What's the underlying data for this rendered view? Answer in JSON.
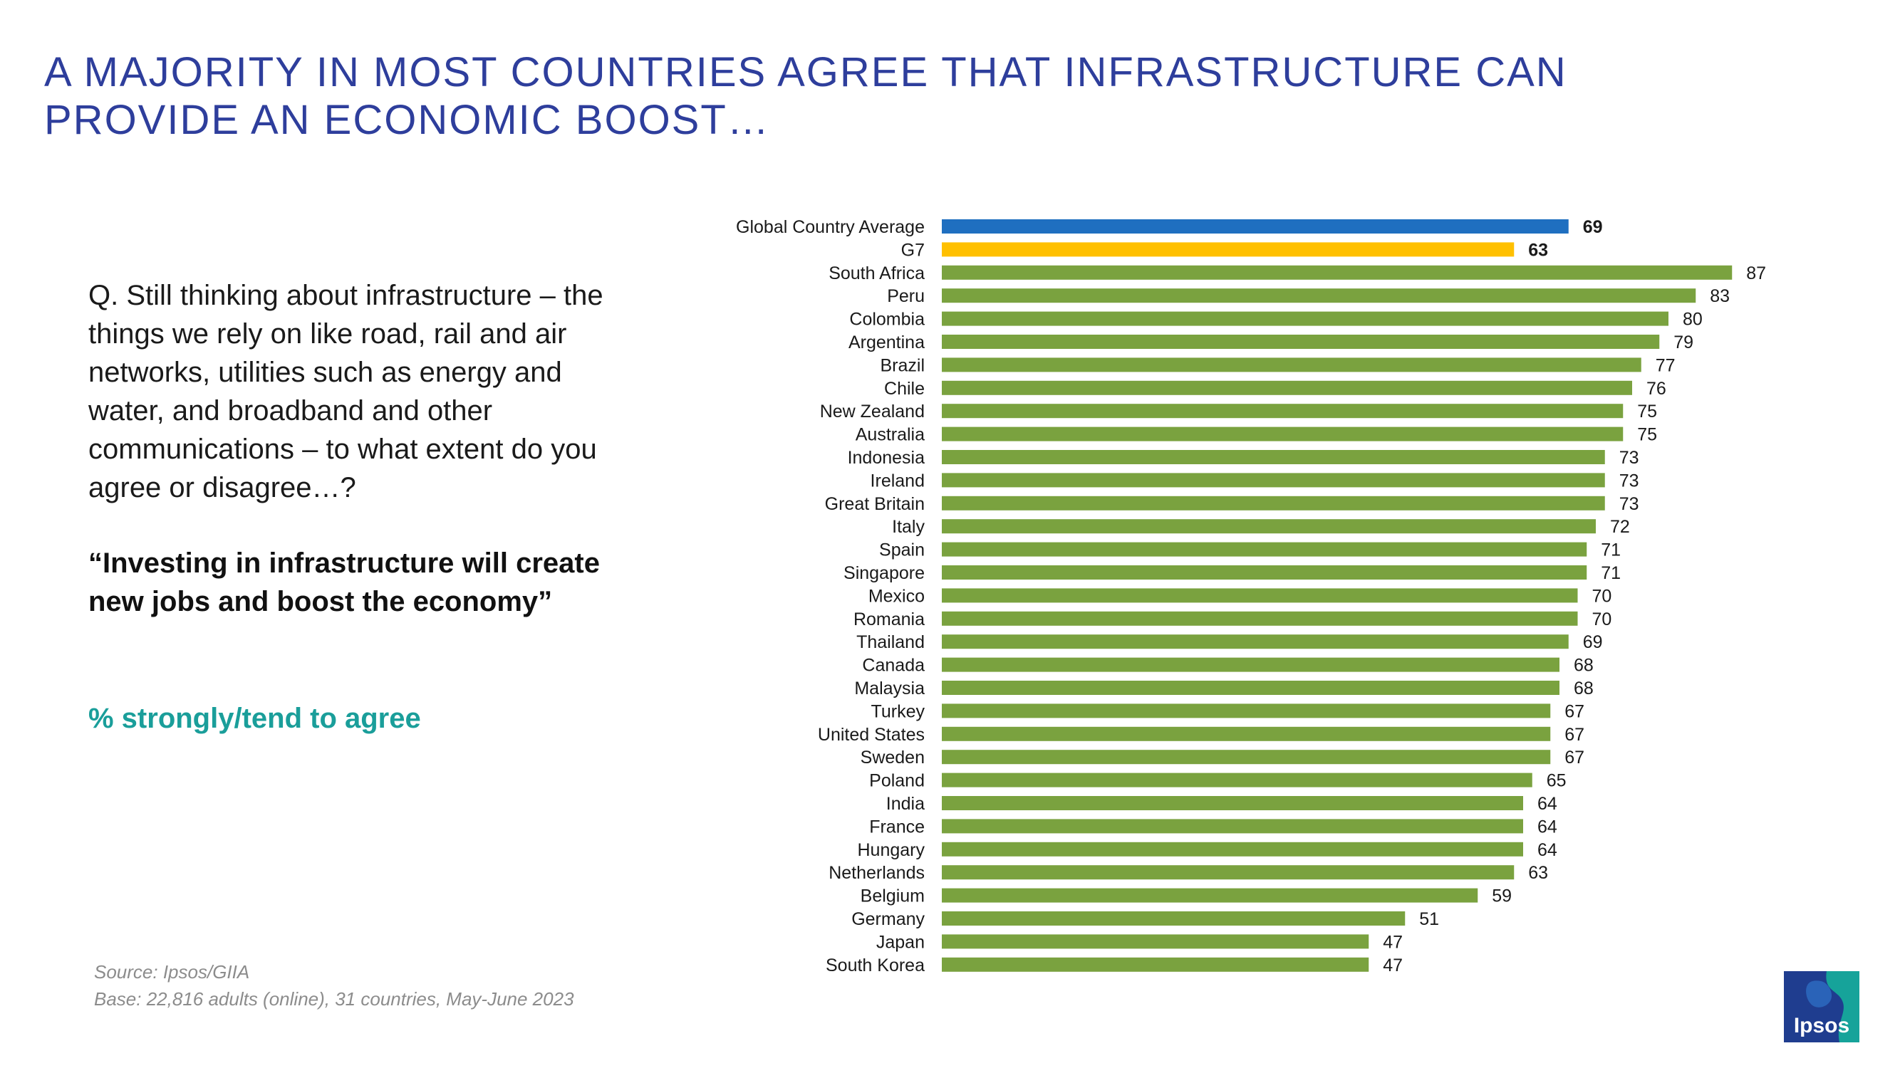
{
  "title": {
    "line1": "A MAJORITY IN MOST COUNTRIES AGREE THAT INFRASTRUCTURE CAN",
    "line2": "PROVIDE AN ECONOMIC BOOST…"
  },
  "question": "Q. Still thinking about infrastructure – the things we rely on like road, rail and air networks, utilities such as energy and water, and broadband and other communications – to what extent do you agree or disagree…?",
  "quote": "“Investing in infrastructure will create new jobs and boost the economy”",
  "metric": "% strongly/tend to agree",
  "source": {
    "line1": "Source: Ipsos/GIIA",
    "line2": "Base: 22,816 adults (online), 31 countries, May-June 2023"
  },
  "logo_text": "Ipsos",
  "colors": {
    "title": "#2e3e9c",
    "global_average": "#1f6fc0",
    "g7": "#ffc000",
    "country": "#7aa23f",
    "metric": "#1a9e9a",
    "logo_bg": "#1f3d8f",
    "logo_accent": "#16a39a"
  },
  "chart_data": {
    "type": "bar",
    "orientation": "horizontal",
    "title": "",
    "xlabel": "",
    "ylabel": "",
    "xlim": [
      0,
      100
    ],
    "grid": false,
    "categories": [
      "Global Country Average",
      "G7",
      "South Africa",
      "Peru",
      "Colombia",
      "Argentina",
      "Brazil",
      "Chile",
      "New Zealand",
      "Australia",
      "Indonesia",
      "Ireland",
      "Great Britain",
      "Italy",
      "Spain",
      "Singapore",
      "Mexico",
      "Romania",
      "Thailand",
      "Canada",
      "Malaysia",
      "Turkey",
      "United States",
      "Sweden",
      "Poland",
      "India",
      "France",
      "Hungary",
      "Netherlands",
      "Belgium",
      "Germany",
      "Japan",
      "South Korea"
    ],
    "values": [
      69,
      63,
      87,
      83,
      80,
      79,
      77,
      76,
      75,
      75,
      73,
      73,
      73,
      72,
      71,
      71,
      70,
      70,
      69,
      68,
      68,
      67,
      67,
      67,
      65,
      64,
      64,
      64,
      63,
      59,
      51,
      47,
      47
    ],
    "data_labels": [
      "69",
      "63",
      "87",
      "83",
      "80",
      "79",
      "77",
      "76",
      "75",
      "75",
      "73",
      "73",
      "73",
      "72",
      "71",
      "71",
      "70",
      "70",
      "69",
      "68",
      "68",
      "67",
      "67",
      "67",
      "65",
      "64",
      "64",
      "64",
      "63",
      "59",
      "51",
      "47",
      "47"
    ],
    "highlight": {
      "Global Country Average": "global_average",
      "G7": "g7"
    }
  }
}
